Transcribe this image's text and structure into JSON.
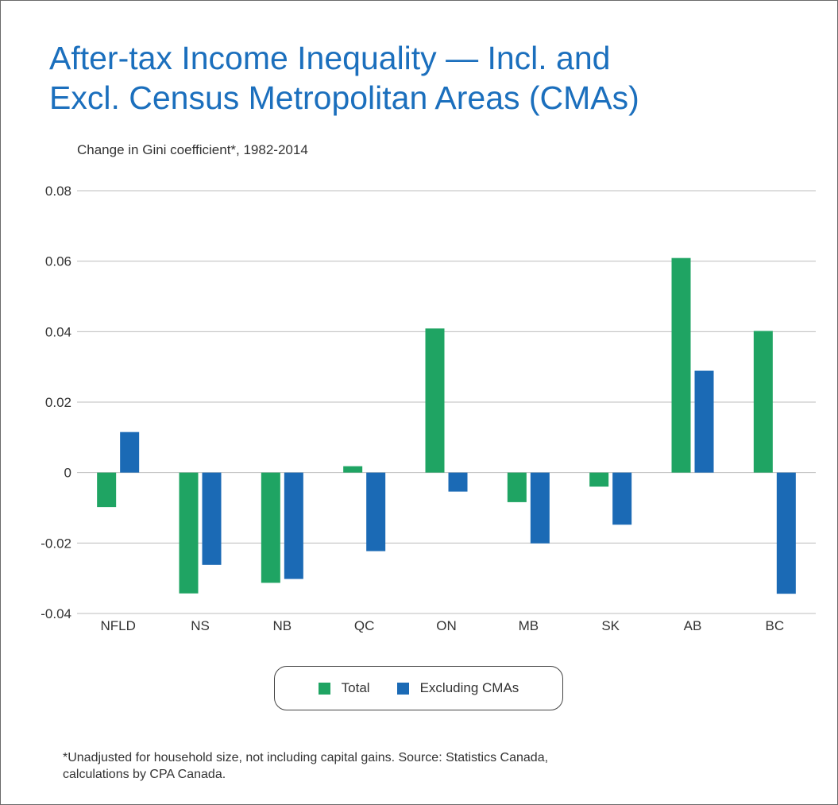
{
  "title_lines": [
    "After-tax Income Inequality — Incl. and",
    "Excl. Census Metropolitan Areas (CMAs)"
  ],
  "subtitle": "Change in Gini coefficient*, 1982-2014",
  "footnote_lines": [
    "*Unadjusted for household size, not including capital gains. Source: Statistics Canada,",
    " calculations by CPA Canada."
  ],
  "colors": {
    "title": "#1b6fbd",
    "total": "#1fa463",
    "excluding": "#1b6ab5",
    "grid": "#bdbdbd"
  },
  "chart_data": {
    "type": "bar",
    "title": "After-tax Income Inequality — Incl. and Excl. Census Metropolitan Areas (CMAs)",
    "subtitle": "Change in Gini coefficient*, 1982-2014",
    "categories": [
      "NFLD",
      "NS",
      "NB",
      "QC",
      "ON",
      "MB",
      "SK",
      "AB",
      "BC"
    ],
    "series": [
      {
        "name": "Total",
        "color": "#1fa463",
        "values": [
          -0.0098,
          -0.0343,
          -0.0313,
          0.0018,
          0.0409,
          -0.0084,
          -0.004,
          0.0609,
          0.0402
        ]
      },
      {
        "name": "Excluding CMAs",
        "color": "#1b6ab5",
        "values": [
          0.0115,
          -0.0262,
          -0.0302,
          -0.0223,
          -0.0054,
          -0.0201,
          -0.0148,
          0.0289,
          -0.0344
        ]
      }
    ],
    "yticks": [
      "0.08",
      "0.06",
      "0.04",
      "0.02",
      "0",
      "-0.02",
      "-0.04"
    ],
    "ytick_values": [
      0.08,
      0.06,
      0.04,
      0.02,
      0,
      -0.02,
      -0.04
    ],
    "ylim": [
      -0.04,
      0.08
    ],
    "grid": true,
    "legend": "bottom-center"
  }
}
